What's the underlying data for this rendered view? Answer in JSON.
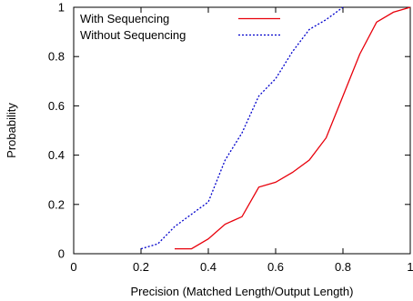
{
  "chart_data": {
    "type": "line",
    "title": "",
    "xlabel": "Precision (Matched Length/Output Length)",
    "ylabel": "Probability",
    "xlim": [
      0,
      1
    ],
    "ylim": [
      0,
      1
    ],
    "x_ticks": [
      "0",
      "0.2",
      "0.4",
      "0.6",
      "0.8",
      "1"
    ],
    "y_ticks": [
      "0",
      "0.2",
      "0.4",
      "0.6",
      "0.8",
      "1"
    ],
    "grid": false,
    "legend_position": "top-left",
    "series": [
      {
        "name": "With Sequencing",
        "color": "#e8000b",
        "dash": "solid",
        "x": [
          0.3,
          0.35,
          0.4,
          0.45,
          0.5,
          0.55,
          0.6,
          0.65,
          0.7,
          0.75,
          0.8,
          0.85,
          0.9,
          0.95,
          1.0
        ],
        "y": [
          0.02,
          0.02,
          0.06,
          0.12,
          0.15,
          0.27,
          0.29,
          0.33,
          0.38,
          0.47,
          0.64,
          0.81,
          0.94,
          0.98,
          1.0
        ]
      },
      {
        "name": "Without Sequencing",
        "color": "#0000cc",
        "dash": "dotted",
        "x": [
          0.2,
          0.25,
          0.3,
          0.35,
          0.4,
          0.45,
          0.5,
          0.55,
          0.6,
          0.65,
          0.7,
          0.75,
          0.8
        ],
        "y": [
          0.02,
          0.04,
          0.11,
          0.16,
          0.21,
          0.38,
          0.49,
          0.64,
          0.71,
          0.82,
          0.91,
          0.95,
          1.0
        ]
      }
    ]
  }
}
